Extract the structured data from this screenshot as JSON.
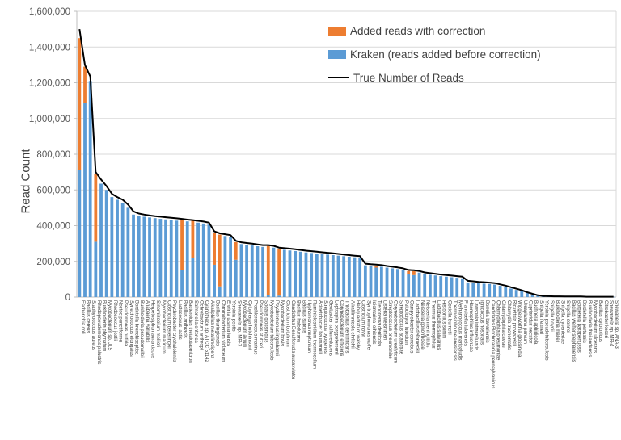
{
  "chart_data": {
    "type": "bar",
    "subtype": "stacked-bars-with-line-overlay",
    "title": "",
    "xlabel": "",
    "ylabel": "Read Count",
    "ylim": [
      0,
      1600000
    ],
    "ytick_step": 200000,
    "grid": true,
    "legend_position": "top-center-inside",
    "legend": [
      {
        "label": "Added reads with correction",
        "color": "#ED7D31",
        "type": "box"
      },
      {
        "label": "Kraken (reads added before correction)",
        "color": "#5B9BD5",
        "type": "box"
      },
      {
        "label": "True Number of Reads",
        "color": "#000000",
        "type": "line"
      }
    ],
    "categories": [
      "Escherichia coli",
      "Bacillus cereus",
      "Staphylococcus aureus",
      "Rhodopseudomonas palustris",
      "Burkholderia phymatum",
      "Mycobacterium sp. JLS",
      "Rhodococcus jostii",
      "Nostoc punctiforme",
      "Pseudomonas putida",
      "Synechococcus elongatus",
      "Bordetella bronchiseptica",
      "Burkholderia pseudomallei",
      "Anabaena variabilis",
      "Herpetosiphon aurantiacus",
      "Sinorhizobium meliloti",
      "Mycobacterium marinum",
      "Clostridium beijerinckii",
      "Psychrobacter cryohalolentis",
      "Lactococcus lactis",
      "Bacillus anthracis",
      "Bacteroides thetaiotaomicron",
      "Salmonella enterica",
      "Ochrobactrum anthropi",
      "Cyanothece sp. ATCC 51142",
      "Alkaliphilus metalliredigens",
      "Bacillus thuringiensis",
      "Chromobacterium violaceum",
      "Erwinia tasmaniensis",
      "Yersinia pestis",
      "Shewanella sp. MR-7",
      "Mycobacterium avium",
      "Cytophaga hutchinsonii",
      "Prochlorococcus marinus",
      "Pseudomonas stutzeri",
      "Sodalis glossinidius",
      "Mycobacterium tuberculosis",
      "Psychromonas ingrahamii",
      "Mycobacterium bovis",
      "Clostridium botulinum",
      "Candidatus Desulforudis audaxviator",
      "Bacillus halodurans",
      "Bacillus subtilis",
      "Hyphomonas neptunium",
      "Ruminiclostridium thermocellum",
      "Acinetobacter baumannii",
      "Streptococcus pyogenes",
      "Geobacter sulfurreducens",
      "Leptospira borgpetersenii",
      "Corynebacterium efficiens",
      "Thiobacillus denitrificans",
      "Alkalilimnicola ehrlichii",
      "Haloquadratum walsbyi",
      "Clostridium novyi",
      "Syntrophomonas wolfei",
      "Idiomarina loihiensis",
      "Treponema denticola",
      "Listeria welshimeri",
      "Streptococcus pneumoniae",
      "Corynebacterium urealyticum",
      "Streptococcus agalactiae",
      "Pelodictyon luteolum",
      "Campylobacter concisus",
      "Lactobacillus delbrueckii",
      "Neisseria gonorrhoeae",
      "Neisseria meningitidis",
      "Thermus thermophilus",
      "Lactobacillus salivarius",
      "Histophilus somni",
      "Coxiella burnetii",
      "Thermosipho melanesiensis",
      "Methanococcus maripaludis",
      "Francisella tularensis",
      "Haemophilus influenzae",
      "Lawsonia intracellularis",
      "Ignicoccus hospitalis",
      "Borrelia bavariensis",
      "Candidatus Blochmannia pennsylvanicus",
      "Chlamydophila pneumoniae",
      "Chlamydophila caviae",
      "Chlamydia trachomatis",
      "Rickettsia prowazekii",
      "Wigglesworthia glossinidia",
      "Ureaplasma parvum",
      "Cupriavidus necator",
      "Buchnera aphidicola",
      "Shigella flexneri",
      "Yersinia pseudotuberculosis",
      "Shigella boydii",
      "Burkholderia mallei",
      "Shigella dysenteriae",
      "Shigella sonnei",
      "Bacillus weihenstephanensis",
      "Bordetella parapertussis",
      "Bordetella pertussis",
      "Burkholderia thailandensis",
      "Mycobacterium ulcerans",
      "Bacillus cytotoxicus",
      "Citrobacter koseri",
      "Shewanella sp. MR-4",
      "Shewanella sp. ANA-3"
    ],
    "series": [
      {
        "name": "Kraken (reads added before correction)",
        "color": "#5B9BD5",
        "values": [
          710000,
          1085000,
          1210000,
          310000,
          635000,
          600000,
          560000,
          545000,
          528000,
          500000,
          462000,
          455000,
          450000,
          446000,
          442000,
          438000,
          435000,
          431000,
          428000,
          150000,
          424000,
          221000,
          417000,
          412000,
          406000,
          181000,
          60000,
          342000,
          337000,
          209000,
          297000,
          293000,
          289000,
          285000,
          281000,
          9000,
          277000,
          8000,
          265000,
          261000,
          258000,
          254000,
          250000,
          247000,
          244000,
          241000,
          238000,
          235000,
          232000,
          229000,
          226000,
          223000,
          220000,
          178000,
          175000,
          165000,
          170000,
          165000,
          161000,
          157000,
          152000,
          128000,
          123000,
          137000,
          129000,
          125000,
          121000,
          117000,
          114000,
          111000,
          108000,
          105000,
          82000,
          79000,
          77000,
          75000,
          73000,
          70000,
          63000,
          56000,
          48000,
          40000,
          32000,
          22000,
          14000,
          8000,
          4000,
          3000,
          3000,
          2000,
          2000,
          2000,
          2000,
          2000,
          1000,
          1000,
          1000,
          1000,
          1000,
          1000
        ]
      },
      {
        "name": "Added reads with correction",
        "color": "#ED7D31",
        "values": [
          740000,
          205000,
          0,
          380000,
          0,
          0,
          0,
          0,
          0,
          0,
          0,
          0,
          0,
          0,
          0,
          0,
          0,
          0,
          0,
          281000,
          0,
          207000,
          0,
          0,
          0,
          178000,
          290000,
          0,
          0,
          99000,
          0,
          0,
          0,
          0,
          0,
          277000,
          0,
          264000,
          0,
          0,
          0,
          0,
          0,
          0,
          0,
          0,
          0,
          0,
          0,
          0,
          0,
          0,
          0,
          0,
          0,
          10000,
          0,
          0,
          0,
          0,
          0,
          18000,
          22000,
          0,
          0,
          0,
          0,
          0,
          0,
          0,
          0,
          0,
          0,
          0,
          0,
          0,
          0,
          0,
          0,
          0,
          0,
          0,
          0,
          0,
          0,
          0,
          0,
          0,
          0,
          0,
          0,
          0,
          0,
          0,
          0,
          0,
          0,
          0,
          0,
          0
        ]
      },
      {
        "name": "True Number of Reads",
        "color": "#000000",
        "values": [
          1500000,
          1300000,
          1235000,
          700000,
          658000,
          622000,
          578000,
          560000,
          545000,
          518000,
          480000,
          468000,
          462000,
          457000,
          453000,
          450000,
          447000,
          444000,
          441000,
          438000,
          434000,
          431000,
          427000,
          423000,
          417000,
          368000,
          357000,
          352000,
          347000,
          315000,
          307000,
          303000,
          299000,
          295000,
          291000,
          291000,
          287000,
          277000,
          274000,
          271000,
          268000,
          264000,
          260000,
          257000,
          254000,
          251000,
          248000,
          245000,
          242000,
          238000,
          235000,
          232000,
          229000,
          187000,
          184000,
          182000,
          179000,
          174000,
          170000,
          166000,
          161000,
          152000,
          150000,
          146000,
          138000,
          134000,
          130000,
          126000,
          123000,
          120000,
          117000,
          114000,
          91000,
          88000,
          85000,
          83000,
          81000,
          78000,
          71000,
          64000,
          55000,
          47000,
          38000,
          27000,
          18000,
          10000,
          6000,
          5000,
          4000,
          4000,
          3000,
          3000,
          3000,
          3000,
          2000,
          2000,
          2000,
          2000,
          2000,
          2000
        ]
      }
    ]
  },
  "colors": {
    "bar_blue": "#5B9BD5",
    "bar_orange": "#ED7D31",
    "true_line": "#000000",
    "gridline": "#D9D9D9",
    "axis_line": "#BFBFBF",
    "tick_text": "#595959",
    "label_text": "#404040"
  }
}
